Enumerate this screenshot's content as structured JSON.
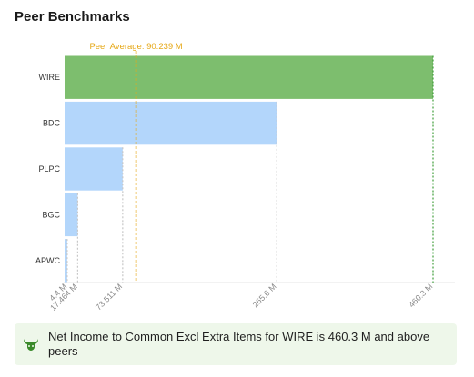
{
  "title": "Peer Benchmarks",
  "insight": {
    "icon": "bull-icon",
    "text": "Net Income to Common Excl Extra Items for WIRE is 460.3 M and above peers",
    "icon_color": "#3a8a2a",
    "background": "#eef7ea"
  },
  "chart_data": {
    "type": "bar",
    "orientation": "horizontal",
    "categories": [
      "WIRE",
      "BDC",
      "PLPC",
      "BGC",
      "APWC"
    ],
    "values": [
      460.3,
      265.6,
      73.511,
      17.464,
      4.4
    ],
    "highlight": "WIRE",
    "tick_labels": [
      "4.4 M",
      "17.464 M",
      "73.511 M",
      "265.6 M",
      "460.3 M"
    ],
    "reference_line": {
      "label": "Peer Average: 90.239 M",
      "value": 90.239,
      "color": "#e6a817"
    },
    "colors": {
      "highlight": "#7dbe6e",
      "peer": "#b3d6fb",
      "highlight_guide": "#3f9e3a",
      "peer_guide": "#c8c8c8"
    },
    "xlim": [
      0,
      460.3
    ],
    "legend": "none",
    "grid": false
  }
}
